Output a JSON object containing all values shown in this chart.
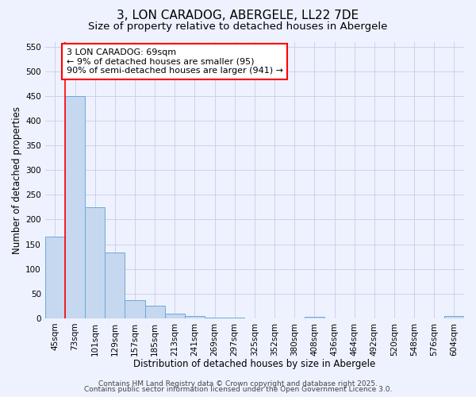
{
  "title": "3, LON CARADOG, ABERGELE, LL22 7DE",
  "subtitle": "Size of property relative to detached houses in Abergele",
  "xlabel": "Distribution of detached houses by size in Abergele",
  "ylabel": "Number of detached properties",
  "categories": [
    "45sqm",
    "73sqm",
    "101sqm",
    "129sqm",
    "157sqm",
    "185sqm",
    "213sqm",
    "241sqm",
    "269sqm",
    "297sqm",
    "325sqm",
    "352sqm",
    "380sqm",
    "408sqm",
    "436sqm",
    "464sqm",
    "492sqm",
    "520sqm",
    "548sqm",
    "576sqm",
    "604sqm"
  ],
  "values": [
    165,
    450,
    225,
    133,
    37,
    26,
    10,
    5,
    2,
    1,
    0,
    0,
    0,
    3,
    0,
    0,
    0,
    0,
    0,
    0,
    5
  ],
  "bar_color": "#c5d8f0",
  "bar_edgecolor": "#6fa8d6",
  "annotation_text": "3 LON CARADOG: 69sqm\n← 9% of detached houses are smaller (95)\n90% of semi-detached houses are larger (941) →",
  "annotation_box_color": "white",
  "annotation_box_edgecolor": "red",
  "red_line_color": "red",
  "ylim": [
    0,
    560
  ],
  "yticks": [
    0,
    50,
    100,
    150,
    200,
    250,
    300,
    350,
    400,
    450,
    500,
    550
  ],
  "footer1": "Contains HM Land Registry data © Crown copyright and database right 2025.",
  "footer2": "Contains public sector information licensed under the Open Government Licence 3.0.",
  "background_color": "#eef2ff",
  "grid_color": "#c8cce8",
  "title_fontsize": 11,
  "subtitle_fontsize": 9.5,
  "axis_label_fontsize": 8.5,
  "tick_fontsize": 7.5,
  "annotation_fontsize": 8,
  "footer_fontsize": 6.5
}
